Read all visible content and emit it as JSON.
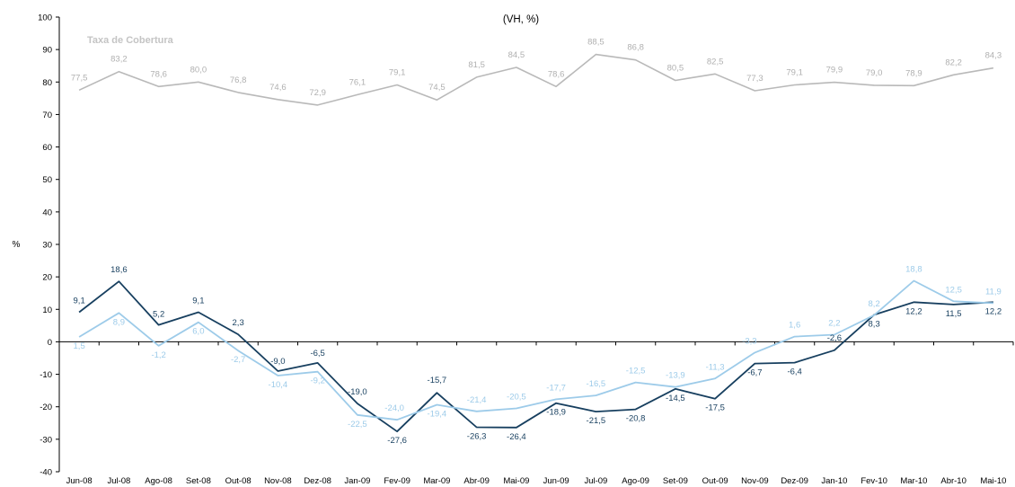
{
  "chart_data": {
    "type": "line",
    "subtitle": "(VH, %)",
    "ylabel": "%",
    "ylim": [
      -40,
      100
    ],
    "yticks": [
      -40,
      -30,
      -20,
      -10,
      0,
      10,
      20,
      30,
      40,
      50,
      60,
      70,
      80,
      90,
      100
    ],
    "categories": [
      "Jun-08",
      "Jul-08",
      "Ago-08",
      "Set-08",
      "Out-08",
      "Nov-08",
      "Dez-08",
      "Jan-09",
      "Fev-09",
      "Mar-09",
      "Abr-09",
      "Mai-09",
      "Jun-09",
      "Jul-09",
      "Ago-09",
      "Set-09",
      "Out-09",
      "Nov-09",
      "Dez-09",
      "Jan-10",
      "Fev-10",
      "Mar-10",
      "Abr-10",
      "Mai-10"
    ],
    "annotation": "Taxa de Cobertura",
    "series": [
      {
        "name": "Taxa de Cobertura",
        "color": "#b9b9b9",
        "values": [
          77.5,
          83.2,
          78.6,
          80.0,
          76.8,
          74.6,
          72.9,
          76.1,
          79.1,
          74.5,
          81.5,
          84.5,
          78.6,
          88.5,
          86.8,
          80.5,
          82.5,
          77.3,
          79.1,
          79.9,
          79.0,
          78.9,
          82.2,
          84.3
        ],
        "labels": [
          "77,5",
          "83,2",
          "78,6",
          "80,0",
          "76,8",
          "74,6",
          "72,9",
          "76,1",
          "79,1",
          "74,5",
          "81,5",
          "84,5",
          "78,6",
          "88,5",
          "86,8",
          "80,5",
          "82,5",
          "77,3",
          "79,1",
          "79,9",
          "79,0",
          "78,9",
          "82,2",
          "84,3"
        ]
      },
      {
        "color": "#173f5f",
        "values": [
          9.1,
          18.6,
          5.2,
          9.1,
          2.3,
          -9.0,
          -6.5,
          -19.0,
          -27.6,
          -15.7,
          -26.3,
          -26.4,
          -18.9,
          -21.5,
          -20.8,
          -14.5,
          -17.5,
          -6.7,
          -6.4,
          -2.6,
          8.3,
          12.2,
          11.5,
          12.2
        ],
        "labels": [
          "9,1",
          "18,6",
          "5,2",
          "9,1",
          "2,3",
          "-9,0",
          "-6,5",
          "-19,0",
          "-27,6",
          "-15,7",
          "-26,3",
          "-26,4",
          "-18,9",
          "-21,5",
          "-20,8",
          "-14,5",
          "-17,5",
          "-6,7",
          "-6,4",
          "-2,6",
          "8,3",
          "12,2",
          "11,5",
          "12,2"
        ]
      },
      {
        "color": "#9dcbe9",
        "values": [
          1.5,
          8.9,
          -1.2,
          6.0,
          -2.7,
          -10.4,
          -9.2,
          -22.5,
          -24.0,
          -19.4,
          -21.4,
          -20.5,
          -17.7,
          -16.5,
          -12.5,
          -13.9,
          -11.3,
          -3.3,
          1.6,
          2.2,
          8.2,
          18.8,
          12.5,
          11.9
        ],
        "labels": [
          "1,5",
          "8,9",
          "-1,2",
          "6,0",
          "-2,7",
          "-10,4",
          "-9,2",
          "-22,5",
          "-24,0",
          "-19,4",
          "-21,4",
          "-20,5",
          "-17,7",
          "-16,5",
          "-12,5",
          "-13,9",
          "-11,3",
          "-3,3",
          "1,6",
          "2,2",
          "8,2",
          "18,8",
          "12,5",
          "11,9"
        ]
      }
    ]
  }
}
